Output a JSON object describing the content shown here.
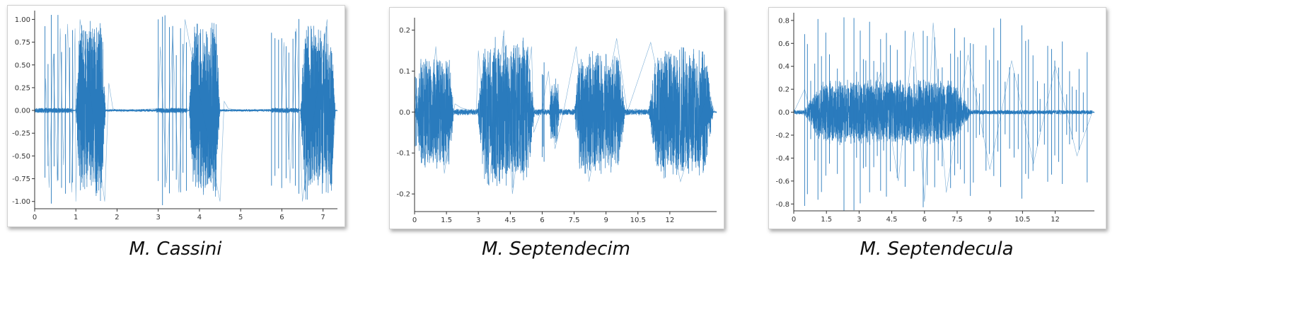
{
  "colors": {
    "series": "#2a7bbd"
  },
  "chart_data": [
    {
      "type": "line",
      "title": "M. Cassini",
      "xlabel": "",
      "ylabel": "",
      "xlim": [
        0,
        7.35
      ],
      "ylim": [
        -1.08,
        1.05
      ],
      "x_ticks": [
        0,
        1,
        2,
        3,
        4,
        5,
        6,
        7
      ],
      "x_tick_labels": [
        "0",
        "1",
        "2",
        "3",
        "4",
        "5",
        "6",
        "7"
      ],
      "y_ticks": [
        1.0,
        0.75,
        0.5,
        0.25,
        0.0,
        -0.25,
        -0.5,
        -0.75,
        -1.0
      ],
      "y_tick_labels": [
        "1.00",
        "0.75",
        "0.50",
        "0.25",
        "0.00",
        "-0.25",
        "-0.50",
        "-0.75",
        "-1.00"
      ],
      "grid": false,
      "series": [
        {
          "values": [
            [
              0,
              0
            ],
            [
              0.25,
              0.02
            ],
            [
              0.27,
              0.35
            ],
            [
              0.35,
              -0.85
            ],
            [
              0.45,
              0.62
            ],
            [
              0.55,
              -0.78
            ],
            [
              0.62,
              0.9
            ],
            [
              0.7,
              -0.6
            ],
            [
              0.8,
              0.95
            ],
            [
              0.9,
              -0.9
            ],
            [
              0.98,
              0.9
            ],
            [
              1.0,
              -1.0
            ],
            [
              1.1,
              1.0
            ],
            [
              1.7,
              -1.0
            ],
            [
              1.8,
              0.3
            ],
            [
              1.9,
              0.02
            ],
            [
              2.0,
              0.0
            ],
            [
              3.0,
              0.02
            ],
            [
              3.05,
              0.7
            ],
            [
              3.2,
              -0.8
            ],
            [
              3.35,
              0.85
            ],
            [
              3.5,
              -0.9
            ],
            [
              3.65,
              1.0
            ],
            [
              4.5,
              -1.0
            ],
            [
              4.6,
              0.1
            ],
            [
              4.7,
              0.02
            ],
            [
              5.0,
              0.0
            ],
            [
              6.0,
              0.02
            ],
            [
              6.05,
              0.75
            ],
            [
              6.2,
              -0.8
            ],
            [
              6.35,
              0.9
            ],
            [
              6.5,
              -1.0
            ],
            [
              7.1,
              1.0
            ],
            [
              7.2,
              -0.8
            ],
            [
              7.3,
              0.0
            ]
          ]
        }
      ]
    },
    {
      "type": "line",
      "title": "M. Septendecim",
      "xlabel": "",
      "ylabel": "",
      "xlim": [
        0,
        14.2
      ],
      "ylim": [
        -0.243,
        0.22
      ],
      "x_ticks": [
        0,
        1.5,
        3,
        4.5,
        6,
        7.5,
        9,
        10.5,
        12
      ],
      "x_tick_labels": [
        "0",
        "1.5",
        "3",
        "4.5",
        "6",
        "7.5",
        "9",
        "10.5",
        "12"
      ],
      "y_ticks": [
        0.2,
        0.1,
        0.0,
        -0.1,
        -0.2
      ],
      "y_tick_labels": [
        "0.2",
        "0.1",
        "0.0",
        "-0.1",
        "-0.2"
      ],
      "grid": false,
      "series": [
        {
          "values": [
            [
              0,
              0.0
            ],
            [
              0.1,
              0.06
            ],
            [
              0.5,
              -0.12
            ],
            [
              1.0,
              0.16
            ],
            [
              1.4,
              -0.15
            ],
            [
              1.9,
              0.02
            ],
            [
              2.2,
              0.01
            ],
            [
              2.9,
              0.0
            ],
            [
              3.0,
              0.15
            ],
            [
              3.5,
              -0.18
            ],
            [
              4.2,
              0.2
            ],
            [
              4.6,
              -0.2
            ],
            [
              5.5,
              0.16
            ],
            [
              5.6,
              -0.05
            ],
            [
              6.0,
              0.01
            ],
            [
              6.3,
              0.1
            ],
            [
              6.6,
              -0.09
            ],
            [
              7.0,
              0.0
            ],
            [
              7.6,
              0.16
            ],
            [
              8.2,
              -0.17
            ],
            [
              9.5,
              0.18
            ],
            [
              10.0,
              0.0
            ],
            [
              11.1,
              0.17
            ],
            [
              12.5,
              -0.17
            ],
            [
              13.8,
              0.05
            ],
            [
              14.1,
              0.0
            ]
          ]
        }
      ]
    },
    {
      "type": "line",
      "title": "M. Septendecula",
      "xlabel": "",
      "ylabel": "",
      "xlim": [
        0,
        13.8
      ],
      "ylim": [
        -0.86,
        0.83
      ],
      "x_ticks": [
        0,
        1.5,
        3,
        4.5,
        6,
        7.5,
        9,
        10.5,
        12
      ],
      "x_tick_labels": [
        "0",
        "1.5",
        "3",
        "4.5",
        "6",
        "7.5",
        "9",
        "10.5",
        "12"
      ],
      "y_ticks": [
        0.8,
        0.6,
        0.4,
        0.2,
        0.0,
        -0.2,
        -0.4,
        -0.6,
        -0.8
      ],
      "y_tick_labels": [
        "0.8",
        "0.6",
        "0.4",
        "0.2",
        "0.0",
        "-0.2",
        "-0.4",
        "-0.6",
        "-0.8"
      ],
      "grid": false,
      "series": [
        {
          "values": [
            [
              0,
              0.0
            ],
            [
              0.5,
              0.2
            ],
            [
              1.0,
              -0.18
            ],
            [
              2.0,
              0.18
            ],
            [
              3.0,
              -0.25
            ],
            [
              4.0,
              0.35
            ],
            [
              4.8,
              -0.6
            ],
            [
              5.5,
              0.7
            ],
            [
              6.0,
              -0.78
            ],
            [
              6.4,
              0.78
            ],
            [
              7.0,
              -0.7
            ],
            [
              8.0,
              0.5
            ],
            [
              9.0,
              -0.5
            ],
            [
              10.0,
              0.45
            ],
            [
              11.0,
              -0.45
            ],
            [
              12.0,
              0.4
            ],
            [
              13.0,
              -0.38
            ],
            [
              13.7,
              0.0
            ]
          ]
        }
      ]
    }
  ]
}
